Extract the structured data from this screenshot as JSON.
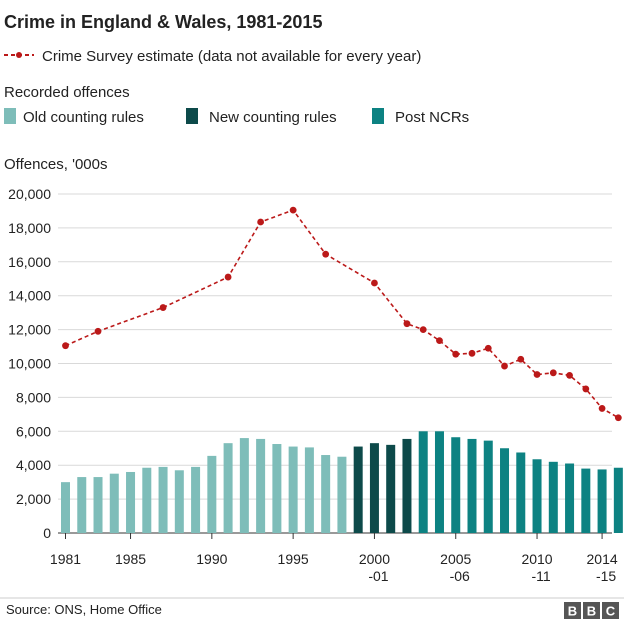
{
  "chart_data": {
    "type": "bar+line",
    "title": "Crime in England & Wales, 1981-2015",
    "legend": {
      "line_label": "Crime Survey estimate (data not available for every year)",
      "bars_heading": "Recorded offences",
      "bar_groups": [
        {
          "name": "Old counting rules",
          "color": "#7ebdb9"
        },
        {
          "name": "New counting rules",
          "color": "#0d4a4a"
        },
        {
          "name": "Post NCRs",
          "color": "#0d8282"
        }
      ]
    },
    "ylabel": "Offences, '000s",
    "ylim": [
      0,
      20000
    ],
    "y_ticks": [
      "0",
      "2,000",
      "4,000",
      "6,000",
      "8,000",
      "10,000",
      "12,000",
      "14,000",
      "16,000",
      "18,000",
      "20,000"
    ],
    "x_tick_labels": [
      {
        "index": 0,
        "lines": [
          "1981"
        ]
      },
      {
        "index": 4,
        "lines": [
          "1985"
        ]
      },
      {
        "index": 9,
        "lines": [
          "1990"
        ]
      },
      {
        "index": 14,
        "lines": [
          "1995"
        ]
      },
      {
        "index": 19,
        "lines": [
          "2000",
          "-01"
        ]
      },
      {
        "index": 24,
        "lines": [
          "2005",
          "-06"
        ]
      },
      {
        "index": 29,
        "lines": [
          "2010",
          "-11"
        ]
      },
      {
        "index": 33,
        "lines": [
          "2014",
          "-15"
        ]
      }
    ],
    "periods": [
      "1981",
      "1982",
      "1983",
      "1984",
      "1985",
      "1986",
      "1987",
      "1988",
      "1989",
      "1990",
      "1991",
      "1992",
      "1993",
      "1994",
      "1995",
      "1996",
      "1997",
      "1997-98",
      "1998-99",
      "1999-00",
      "2000-01",
      "2001-02",
      "2002-03",
      "2003-04",
      "2004-05",
      "2005-06",
      "2006-07",
      "2007-08",
      "2008-09",
      "2009-10",
      "2010-11",
      "2011-12",
      "2012-13",
      "2013-14",
      "2014-15"
    ],
    "series": [
      {
        "name": "Old counting rules",
        "values": [
          3000,
          3300,
          3300,
          3500,
          3600,
          3850,
          3900,
          3700,
          3900,
          4550,
          5300,
          5600,
          5550,
          5250,
          5100,
          5050,
          4600,
          4500
        ]
      },
      {
        "name": "New counting rules",
        "values": [
          5100,
          5300,
          5200,
          5550
        ]
      },
      {
        "name": "Post NCRs",
        "values": [
          6000,
          6000,
          5650,
          5550,
          5450,
          5000,
          4750,
          4350,
          4200,
          4100,
          3800,
          3750,
          3850
        ]
      },
      {
        "name": "Crime Survey estimate",
        "points": [
          {
            "x": "1981",
            "y": 11050
          },
          {
            "x": "1983",
            "y": 11900
          },
          {
            "x": "1987",
            "y": 13300
          },
          {
            "x": "1991",
            "y": 15100
          },
          {
            "x": "1993",
            "y": 18350
          },
          {
            "x": "1995",
            "y": 19050
          },
          {
            "x": "1997",
            "y": 16450
          },
          {
            "x": "1999-00",
            "y": 14750
          },
          {
            "x": "2001-02",
            "y": 12350
          },
          {
            "x": "2002-03",
            "y": 12000
          },
          {
            "x": "2003-04",
            "y": 11350
          },
          {
            "x": "2004-05",
            "y": 10550
          },
          {
            "x": "2005-06",
            "y": 10600
          },
          {
            "x": "2006-07",
            "y": 10900
          },
          {
            "x": "2007-08",
            "y": 9850
          },
          {
            "x": "2008-09",
            "y": 10250
          },
          {
            "x": "2009-10",
            "y": 9350
          },
          {
            "x": "2010-11",
            "y": 9450
          },
          {
            "x": "2011-12",
            "y": 9300
          },
          {
            "x": "2012-13",
            "y": 8500
          },
          {
            "x": "2013-14",
            "y": 7350
          },
          {
            "x": "2014-15",
            "y": 6800
          }
        ]
      }
    ],
    "line_color": "#bb1919",
    "grid": true
  },
  "footer": {
    "source": "Source: ONS, Home Office",
    "logo": [
      "B",
      "B",
      "C"
    ]
  }
}
